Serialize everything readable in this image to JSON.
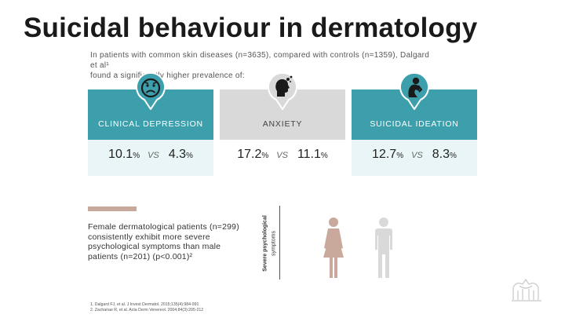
{
  "slide": {
    "title": "Suicidal behaviour in dermatology",
    "intro_line1": "In patients with common skin diseases (n=3635), compared with controls (n=1359), Dalgard et al¹",
    "intro_line2": "found a significantly higher prevalence of:"
  },
  "cards": [
    {
      "label": "CLINICAL DEPRESSION",
      "icon": "sad-face-icon",
      "value_a": "10.1",
      "value_b": "4.3",
      "vs": "VS",
      "unit": "%"
    },
    {
      "label": "ANXIETY",
      "icon": "anxious-head-icon",
      "value_a": "17.2",
      "value_b": "11.1",
      "vs": "VS",
      "unit": "%"
    },
    {
      "label": "SUICIDAL IDEATION",
      "icon": "despair-person-icon",
      "value_a": "12.7",
      "value_b": "8.3",
      "vs": "VS",
      "unit": "%"
    }
  ],
  "female_section": {
    "text_line1": "Female dermatological patients (n=299)",
    "text_line2": "consistently exhibit more severe",
    "text_line3": "psychological symptoms than male",
    "text_line4": "patients (n=201) (p<0.001)²",
    "axis_label_line1": "Severe psychological",
    "axis_label_line2": "symptoms"
  },
  "references": {
    "ref1": "1. Dalgard FJ, et al. J Invest Dermatol. 2015;135(4):984-991",
    "ref2": "2. Zachariae R, et al. Acta Derm Venereol. 2004;84(3):205-212"
  },
  "colors": {
    "teal": "#3c9fab",
    "teal_light": "#e9f5f6",
    "grey": "#d9d9d9",
    "female": "#c9a99c",
    "male": "#d9d9d9"
  }
}
